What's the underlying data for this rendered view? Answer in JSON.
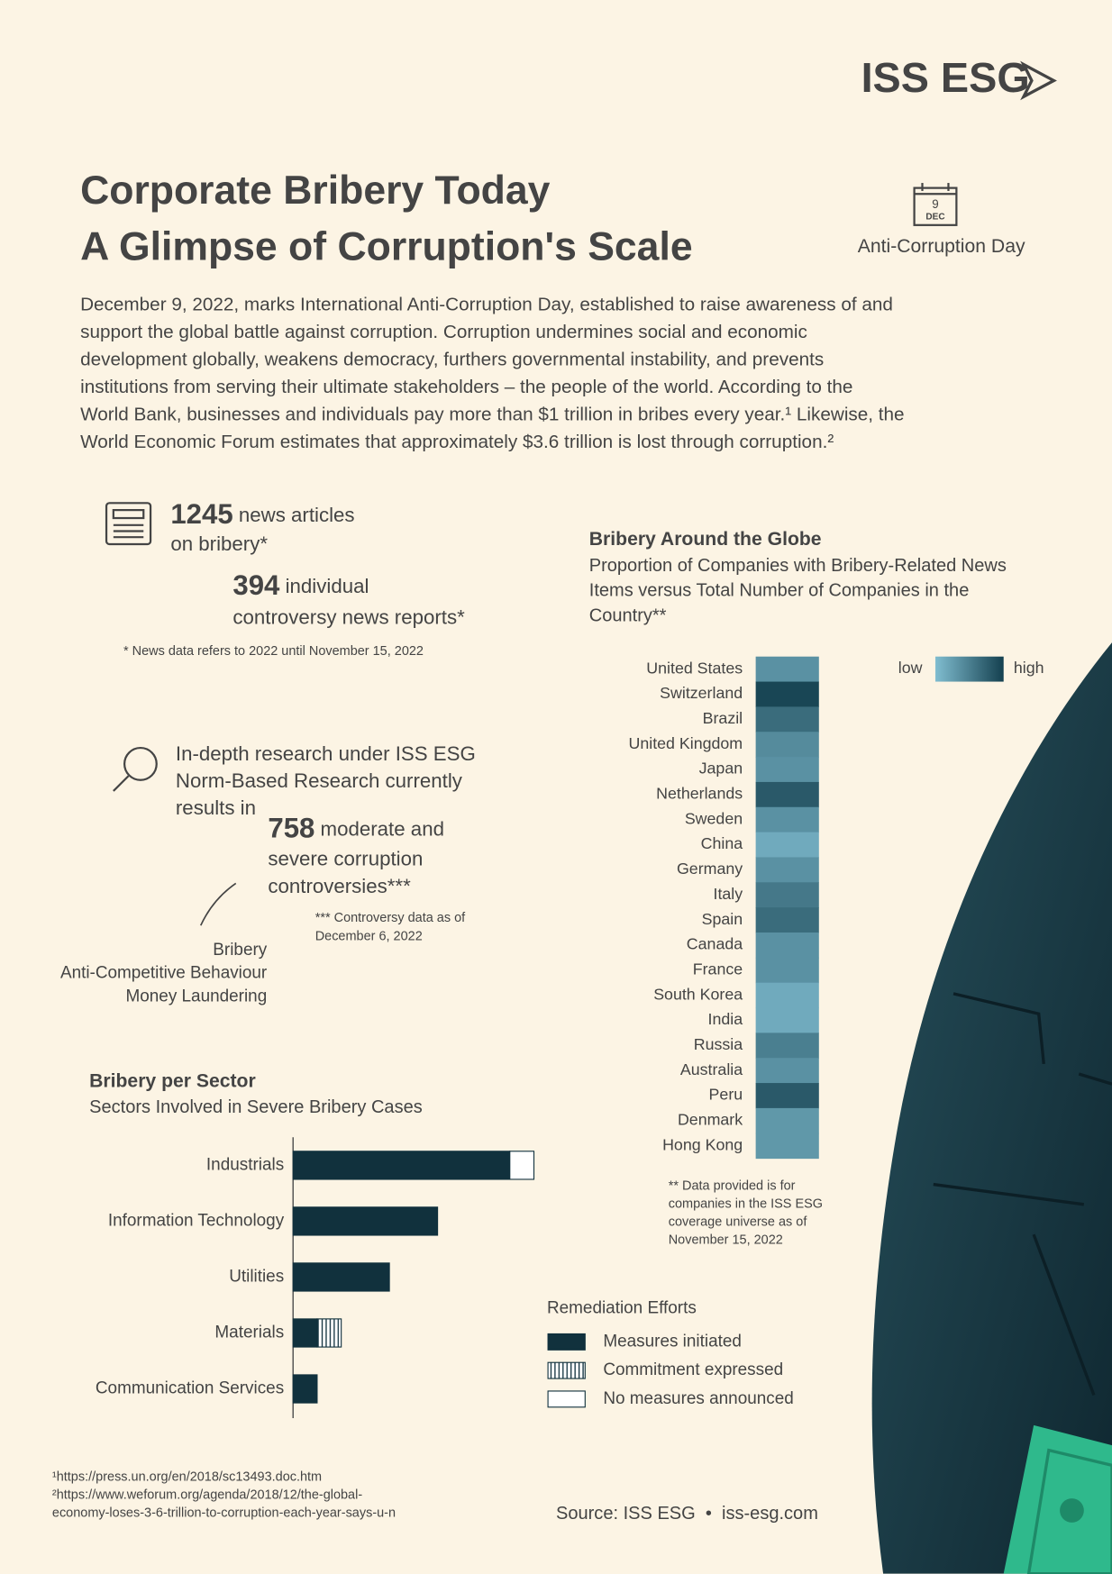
{
  "logo": "ISS ESG",
  "header": {
    "title_lines": [
      "Corporate Bribery Today",
      "A Glimpse of Corruption's Scale"
    ],
    "calendar_day": "9",
    "calendar_month": "DEC",
    "event": "Anti-Corruption Day"
  },
  "intro_lines": [
    "December 9, 2022, marks International Anti-Corruption Day, established to raise awareness of and",
    "support the global battle against corruption. Corruption undermines social and economic",
    "development globally, weakens democracy, furthers governmental instability, and prevents",
    "institutions from serving their ultimate stakeholders – the people of the world. According to the",
    "World Bank, businesses and individuals pay more than $1 trillion in bribes every year.¹ Likewise, the",
    "World Economic Forum estimates that approximately $3.6 trillion is lost through corruption.²"
  ],
  "stats": {
    "articles": {
      "number": 1245,
      "text": " news articles",
      "text2": "on bribery*"
    },
    "reports": {
      "number": 394,
      "text": " individual",
      "text2": "controversy news reports*"
    },
    "news_note": "* News data refers to 2022 until November 15, 2022",
    "research_lines": [
      "In-depth research under ISS ESG",
      "Norm-Based Research currently",
      "results in"
    ],
    "controversies": {
      "number": 758,
      "text": " moderate and",
      "text2": "severe corruption",
      "text3": "controversies***"
    },
    "controversy_note": [
      "*** Controversy data as of",
      "December 6, 2022"
    ],
    "topics": [
      "Bribery",
      "Anti-Competitive Behaviour",
      "Money Laundering"
    ]
  },
  "chart_data": [
    {
      "type": "heatmap",
      "title": "Bribery Around the Globe",
      "subtitle": [
        "Proportion of Companies with Bribery-Related News",
        "Items versus Total Number of Companies in the",
        "Country**"
      ],
      "categories": [
        "United States",
        "Switzerland",
        "Brazil",
        "United Kingdom",
        "Japan",
        "Netherlands",
        "Sweden",
        "China",
        "Germany",
        "Italy",
        "Spain",
        "Canada",
        "France",
        "South Korea",
        "India",
        "Russia",
        "Australia",
        "Peru",
        "Denmark",
        "Hong Kong"
      ],
      "values": [
        35,
        95,
        65,
        40,
        35,
        80,
        35,
        15,
        35,
        55,
        65,
        35,
        35,
        15,
        15,
        50,
        35,
        80,
        30,
        30
      ],
      "clim": [
        0,
        100
      ],
      "colors": [
        "#80bdd0",
        "#14404f"
      ],
      "legend_labels": [
        "low",
        "high"
      ],
      "note": [
        "** Data provided is for",
        "companies in the ISS ESG",
        "coverage universe as of",
        "November 15, 2022"
      ]
    },
    {
      "type": "bar",
      "orientation": "horizontal",
      "stacked": true,
      "title": "Bribery per Sector",
      "subtitle": "Sectors Involved in Severe Bribery Cases",
      "categories": [
        "Industrials",
        "Information Technology",
        "Utilities",
        "Materials",
        "Communication Services"
      ],
      "series": [
        {
          "name": "Measures initiated",
          "color": "#11313d",
          "hatch": false,
          "values": [
            9,
            6,
            4,
            1,
            1
          ]
        },
        {
          "name": "Commitment expressed",
          "color": "#ffffff",
          "hatch": true,
          "values": [
            0,
            0,
            0,
            1,
            0
          ]
        },
        {
          "name": "No measures announced",
          "color": "#ffffff",
          "hatch": false,
          "values": [
            1,
            0,
            0,
            0,
            0
          ]
        }
      ],
      "xlim": [
        0,
        10
      ],
      "legend_title": "Remediation Efforts"
    }
  ],
  "footnotes": [
    "¹https://press.un.org/en/2018/sc13493.doc.htm",
    "²https://www.weforum.org/agenda/2018/12/the-global-",
    "economy-loses-3-6-trillion-to-corruption-each-year-says-u-n"
  ],
  "source": "Source: ISS ESG  •  iss-esg.com"
}
